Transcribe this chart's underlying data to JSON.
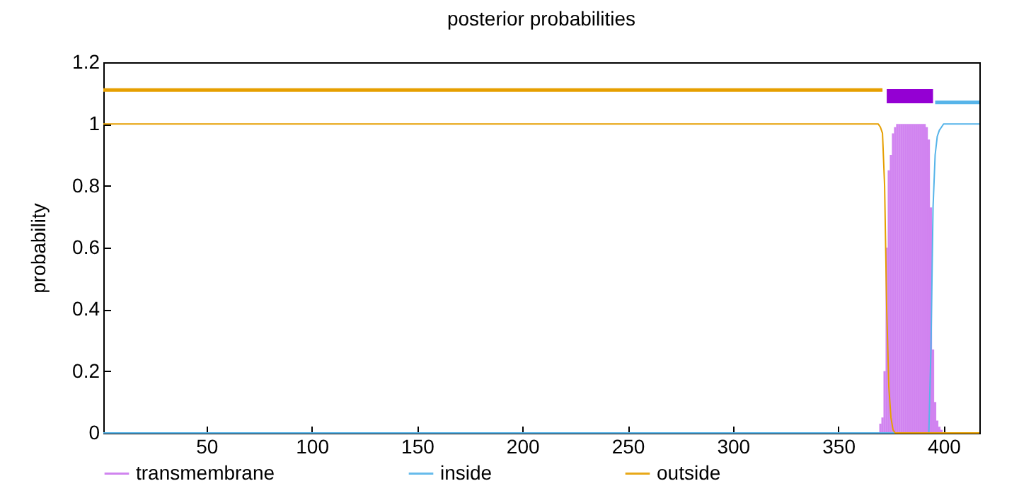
{
  "chart_data": {
    "type": "line",
    "title": "posterior probabilities",
    "ylabel": "probability",
    "xlim": [
      1,
      417
    ],
    "xticks": [
      50,
      100,
      150,
      200,
      250,
      300,
      350,
      400
    ],
    "ylim": [
      0,
      1.2
    ],
    "yticks": [
      0,
      0.2,
      0.4,
      0.6,
      0.8,
      1,
      1.2
    ],
    "legend": "bottom",
    "series": [
      {
        "name": "transmembrane",
        "type": "bar",
        "color": "#cc77ee",
        "x": [
          368,
          369,
          370,
          371,
          372,
          373,
          374,
          375,
          376,
          377,
          378,
          379,
          380,
          381,
          382,
          383,
          384,
          385,
          386,
          387,
          388,
          389,
          390,
          391,
          392,
          393,
          394,
          395,
          396,
          397,
          398,
          399,
          400
        ],
        "values": [
          0,
          0,
          0.03,
          0.05,
          0.2,
          0.6,
          0.85,
          0.9,
          0.97,
          0.99,
          1,
          1,
          1,
          1,
          1,
          1,
          1,
          1,
          1,
          1,
          1,
          1,
          1,
          1,
          0.99,
          0.95,
          0.73,
          0.27,
          0.1,
          0.04,
          0.02,
          0.01,
          0
        ]
      },
      {
        "name": "inside",
        "color": "#56b4e9",
        "x": [
          1,
          393,
          394,
          395,
          396,
          397,
          398,
          399,
          400,
          417
        ],
        "values": [
          0,
          0,
          0.27,
          0.73,
          0.9,
          0.96,
          0.98,
          0.99,
          1,
          1
        ]
      },
      {
        "name": "outside",
        "color": "#e69f00",
        "x": [
          1,
          369,
          370,
          371,
          372,
          373,
          374,
          375,
          376,
          377,
          417
        ],
        "values": [
          1,
          1,
          0.99,
          0.97,
          0.8,
          0.4,
          0.15,
          0.05,
          0.01,
          0,
          0
        ]
      },
      {
        "color": "#e69f00",
        "x": [
          1,
          371
        ],
        "values": [
          1.11,
          1.11
        ]
      },
      {
        "color": "#9400d3",
        "x": [
          373,
          395
        ],
        "values": [
          1.09,
          1.09
        ]
      },
      {
        "color": "#56b4e9",
        "x": [
          396,
          417
        ],
        "values": [
          1.07,
          1.07
        ]
      }
    ]
  }
}
